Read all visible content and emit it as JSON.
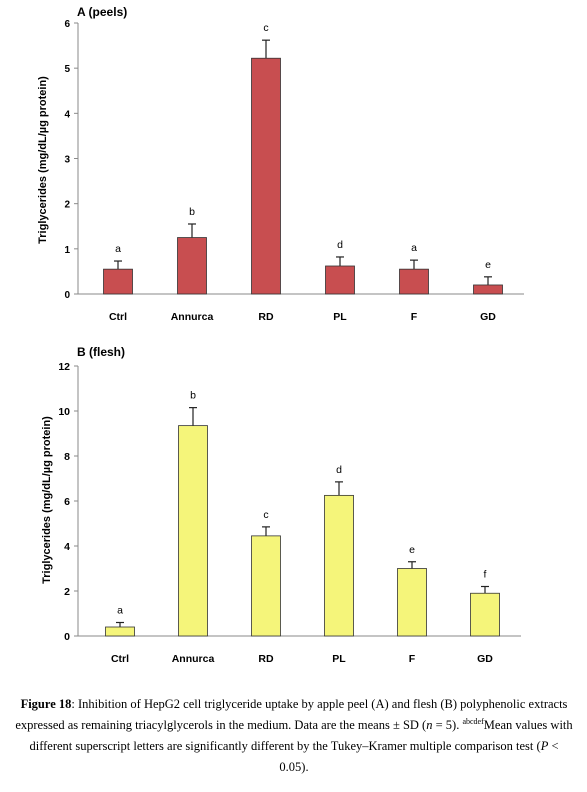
{
  "chart_data": [
    {
      "type": "bar",
      "title": "A (peels)",
      "ylabel": "Triglycerides (mg/dL/µg protein)",
      "categories": [
        "Ctrl",
        "Annurca",
        "RD",
        "PL",
        "F",
        "GD"
      ],
      "values": [
        0.55,
        1.25,
        5.22,
        0.62,
        0.55,
        0.2
      ],
      "errors": [
        0.18,
        0.3,
        0.4,
        0.2,
        0.2,
        0.18
      ],
      "letters": [
        "a",
        "b",
        "c",
        "d",
        "a",
        "e"
      ],
      "ylim": [
        0,
        6
      ],
      "yticks": [
        0,
        1,
        2,
        3,
        4,
        5,
        6
      ],
      "bar_color": "#c84e50",
      "grid": false
    },
    {
      "type": "bar",
      "title": "B (flesh)",
      "ylabel": "Triglycerides (mg/dL/µg protein)",
      "categories": [
        "Ctrl",
        "Annurca",
        "RD",
        "PL",
        "F",
        "GD"
      ],
      "values": [
        0.4,
        9.35,
        4.45,
        6.25,
        3.0,
        1.9
      ],
      "errors": [
        0.2,
        0.8,
        0.4,
        0.6,
        0.3,
        0.3
      ],
      "letters": [
        "a",
        "b",
        "c",
        "d",
        "e",
        "f"
      ],
      "ylim": [
        0,
        12
      ],
      "yticks": [
        0,
        2,
        4,
        6,
        8,
        10,
        12
      ],
      "bar_color": "#f5f57a",
      "grid": false
    }
  ],
  "caption": {
    "label": "Figure 18",
    "text_1": ": Inhibition of HepG2 cell triglyceride uptake by apple peel (A) and flesh (B) polyphenolic extracts expressed as remaining triacylglycerols in the medium. Data are the means ± SD (",
    "n_symbol": "n",
    "text_2": " = 5). ",
    "superscript": "abcdef",
    "text_3": "Mean values with different superscript letters are significantly different by the Tukey–Kramer multiple comparison test (",
    "p_symbol": "P",
    "text_4": " < 0.05)."
  }
}
